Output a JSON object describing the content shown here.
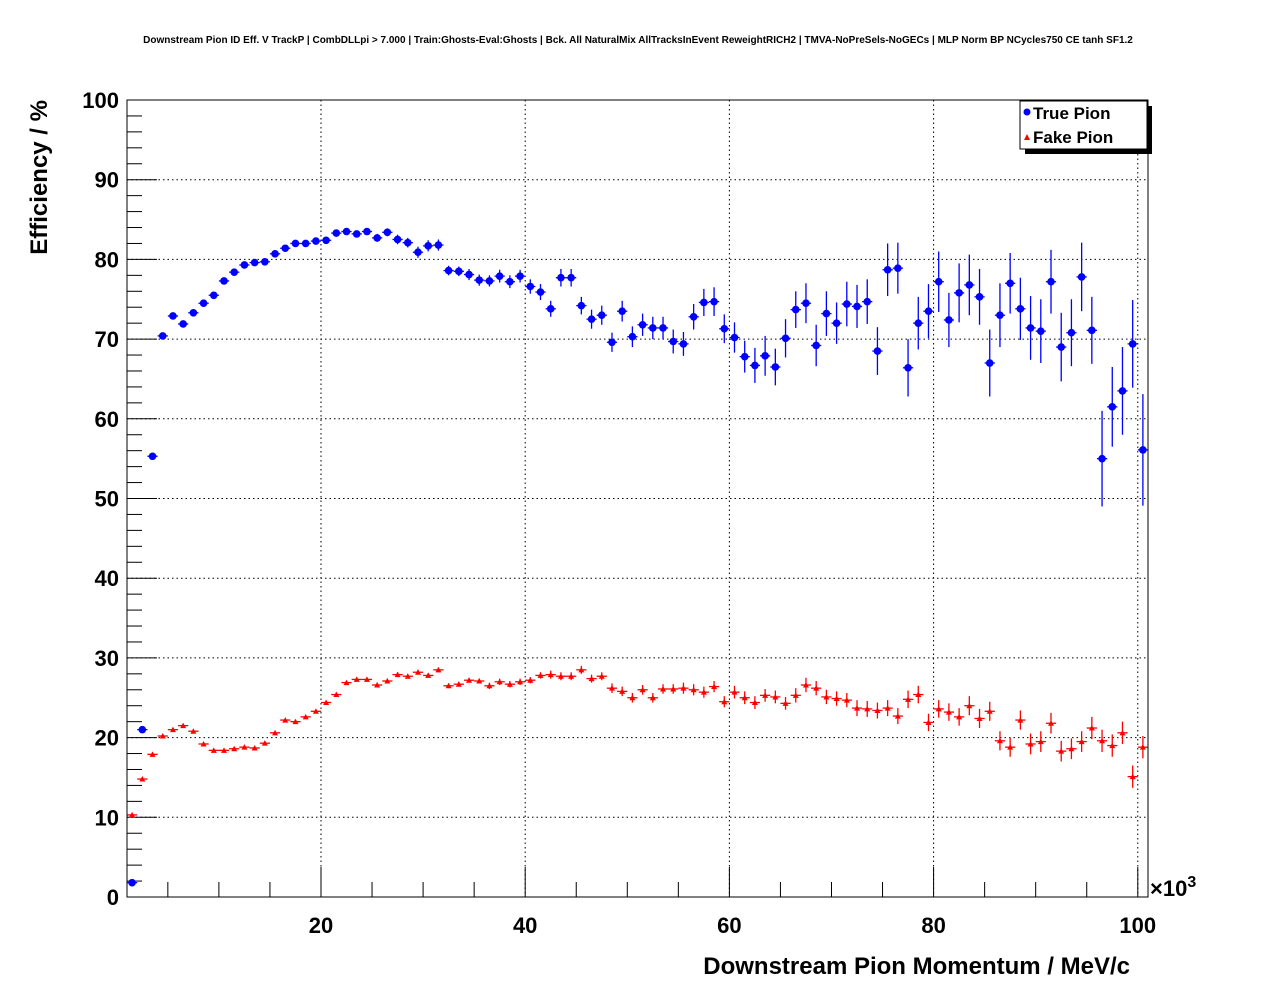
{
  "chart_data": {
    "type": "scatter",
    "title": "Downstream Pion ID Eff. V TrackP | CombDLLpi > 7.000 | Train:Ghosts-Eval:Ghosts | Bck. All NaturalMix AllTracksInEvent ReweightRICH2 | TMVA-NoPreSels-NoGECs | MLP Norm BP NCycles750 CE tanh SF1.2",
    "xlabel": "Downstream Pion Momentum / MeV/c",
    "ylabel": "Efficiency / %",
    "x_exponent": "×10",
    "x_exponent_power": "3",
    "xlim": [
      1,
      101
    ],
    "ylim": [
      0,
      100
    ],
    "x_ticks": [
      "20",
      "40",
      "60",
      "80",
      "100"
    ],
    "y_ticks": [
      "0",
      "10",
      "20",
      "30",
      "40",
      "50",
      "60",
      "70",
      "80",
      "90",
      "100"
    ],
    "grid": true,
    "legend_position": "top-right",
    "bin_width": 1,
    "x_start": 1.5,
    "series": [
      {
        "name": "True Pion",
        "color": "#0000ff",
        "marker": "circle",
        "values": [
          1.8,
          21.0,
          55.3,
          70.4,
          72.9,
          71.9,
          73.3,
          74.5,
          75.5,
          77.3,
          78.4,
          79.3,
          79.6,
          79.7,
          80.7,
          81.4,
          82.0,
          82.0,
          82.3,
          82.4,
          83.3,
          83.5,
          83.2,
          83.5,
          82.7,
          83.4,
          82.5,
          82.1,
          80.9,
          81.7,
          81.8,
          78.6,
          78.5,
          78.1,
          77.4,
          77.3,
          77.9,
          77.2,
          77.9,
          76.6,
          75.9,
          73.8,
          77.7,
          77.7,
          74.2,
          72.5,
          73.0,
          69.6,
          73.5,
          70.3,
          71.8,
          71.4,
          71.4,
          69.7,
          69.4,
          72.8,
          74.6,
          74.7,
          71.3,
          70.2,
          67.8,
          66.7,
          67.9,
          66.5,
          70.1,
          73.7,
          74.5,
          69.2,
          73.2,
          72.0,
          74.4,
          74.1,
          74.7,
          68.5,
          78.7,
          78.9,
          66.4,
          72.0,
          73.5,
          77.2,
          72.4,
          75.8,
          76.8,
          75.3,
          67.0,
          73.0,
          77.0,
          73.8,
          71.4,
          71.0,
          77.2,
          69.0,
          70.8,
          77.8,
          71.1,
          55.0,
          61.5,
          63.5,
          69.4,
          56.1
        ],
        "errors": [
          0.2,
          0.3,
          0.3,
          0.3,
          0.3,
          0.3,
          0.3,
          0.3,
          0.3,
          0.3,
          0.3,
          0.3,
          0.3,
          0.3,
          0.3,
          0.3,
          0.3,
          0.3,
          0.3,
          0.3,
          0.4,
          0.4,
          0.4,
          0.4,
          0.5,
          0.5,
          0.6,
          0.6,
          0.7,
          0.7,
          0.7,
          0.6,
          0.6,
          0.7,
          0.7,
          0.7,
          0.8,
          0.8,
          0.8,
          0.9,
          1.0,
          1.0,
          1.1,
          1.1,
          1.1,
          1.2,
          1.2,
          1.2,
          1.3,
          1.3,
          1.4,
          1.4,
          1.4,
          1.5,
          1.5,
          1.6,
          1.7,
          1.8,
          1.8,
          1.9,
          2.0,
          2.2,
          2.5,
          2.3,
          2.4,
          2.3,
          2.5,
          2.6,
          2.8,
          2.6,
          2.8,
          2.7,
          2.8,
          3.0,
          3.3,
          3.2,
          3.6,
          3.3,
          3.4,
          3.8,
          3.4,
          3.7,
          3.8,
          3.5,
          4.2,
          4.0,
          3.8,
          3.9,
          4.0,
          4.0,
          4.0,
          4.3,
          4.2,
          4.3,
          4.2,
          6.0,
          5.0,
          5.5,
          5.5,
          7.0
        ]
      },
      {
        "name": "Fake Pion",
        "color": "#ff0000",
        "marker": "triangle",
        "values": [
          10.3,
          14.8,
          17.9,
          20.2,
          21.0,
          21.5,
          20.8,
          19.2,
          18.4,
          18.4,
          18.6,
          18.8,
          18.7,
          19.3,
          20.6,
          22.2,
          22.0,
          22.6,
          23.3,
          24.4,
          25.4,
          26.9,
          27.3,
          27.3,
          26.6,
          27.1,
          27.9,
          27.7,
          28.2,
          27.8,
          28.5,
          26.5,
          26.7,
          27.2,
          27.1,
          26.5,
          27.0,
          26.7,
          27.0,
          27.2,
          27.8,
          27.9,
          27.7,
          27.7,
          28.5,
          27.4,
          27.7,
          26.2,
          25.8,
          25.0,
          26.0,
          25.0,
          26.1,
          26.1,
          26.2,
          26.0,
          25.7,
          26.4,
          24.5,
          25.7,
          25.0,
          24.4,
          25.3,
          25.1,
          24.3,
          25.3,
          26.6,
          26.2,
          25.1,
          24.9,
          24.7,
          23.7,
          23.6,
          23.4,
          23.7,
          22.7,
          24.8,
          25.4,
          21.9,
          23.6,
          23.2,
          22.6,
          24.0,
          22.4,
          23.3,
          19.6,
          18.8,
          22.2,
          19.2,
          19.5,
          21.8,
          18.3,
          18.6,
          19.5,
          21.2,
          19.6,
          19.0,
          20.6,
          15.1,
          18.8
        ],
        "errors": [
          0.2,
          0.2,
          0.2,
          0.2,
          0.2,
          0.2,
          0.2,
          0.2,
          0.2,
          0.2,
          0.2,
          0.2,
          0.2,
          0.2,
          0.2,
          0.2,
          0.2,
          0.2,
          0.2,
          0.2,
          0.2,
          0.2,
          0.2,
          0.2,
          0.3,
          0.3,
          0.3,
          0.3,
          0.3,
          0.3,
          0.3,
          0.3,
          0.3,
          0.3,
          0.3,
          0.4,
          0.4,
          0.4,
          0.4,
          0.4,
          0.4,
          0.5,
          0.5,
          0.5,
          0.5,
          0.5,
          0.5,
          0.6,
          0.6,
          0.6,
          0.6,
          0.6,
          0.6,
          0.6,
          0.7,
          0.7,
          0.7,
          0.7,
          0.7,
          0.8,
          0.8,
          0.8,
          0.8,
          0.8,
          0.8,
          0.9,
          0.9,
          0.9,
          0.9,
          0.9,
          0.9,
          1.0,
          1.0,
          1.0,
          1.0,
          1.0,
          1.1,
          1.1,
          1.1,
          1.1,
          1.1,
          1.1,
          1.2,
          1.2,
          1.2,
          1.2,
          1.2,
          1.2,
          1.3,
          1.3,
          1.3,
          1.3,
          1.3,
          1.3,
          1.4,
          1.4,
          1.4,
          1.4,
          1.4,
          1.4
        ]
      }
    ]
  }
}
